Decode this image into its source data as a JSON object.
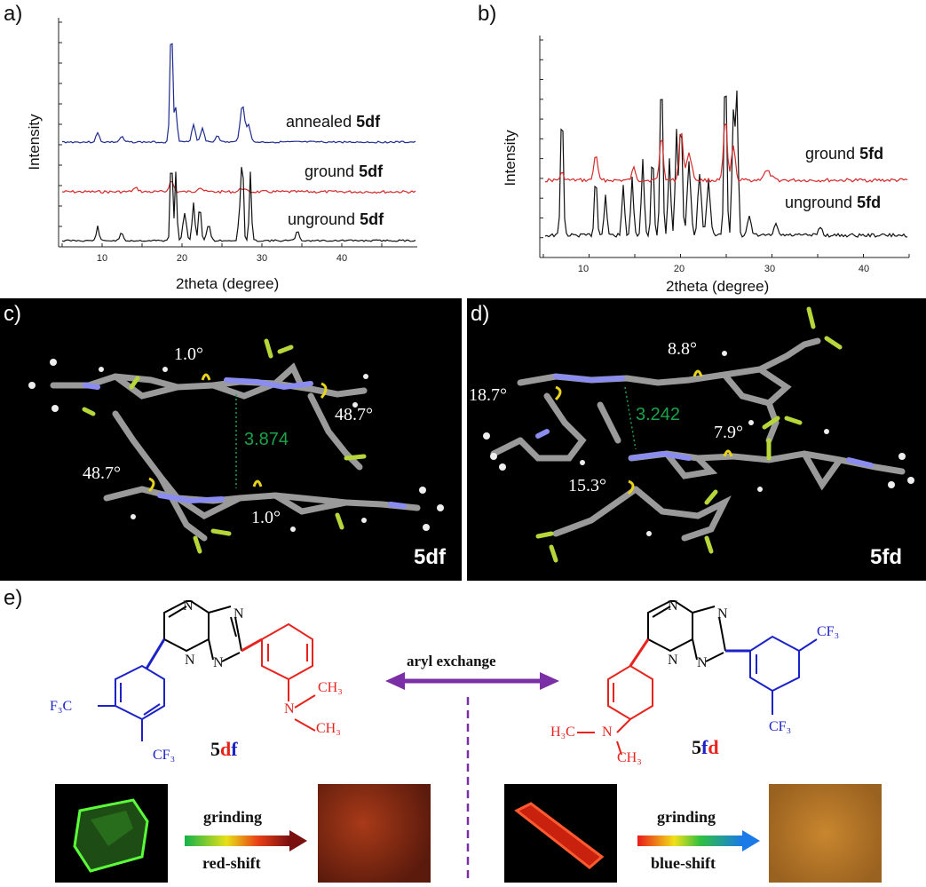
{
  "panel_a": {
    "label": "a)",
    "ylabel": "Intensity",
    "xlabel": "2theta (degree)",
    "xticks": [
      "10",
      "20",
      "30",
      "40"
    ],
    "traces": [
      {
        "prefix": "annealed ",
        "compound": "5df",
        "color": "#1f2c8f"
      },
      {
        "prefix": "ground ",
        "compound": "5df",
        "color": "#d42a2a"
      },
      {
        "prefix": "unground ",
        "compound": "5df",
        "color": "#111111"
      }
    ]
  },
  "panel_b": {
    "label": "b)",
    "ylabel": "Intensity",
    "xlabel": "2theta (degree)",
    "xticks": [
      "10",
      "20",
      "30",
      "40"
    ],
    "traces": [
      {
        "prefix": "ground ",
        "compound": "5fd",
        "color": "#d42a2a"
      },
      {
        "prefix": "unground ",
        "compound": "5fd",
        "color": "#111111"
      }
    ]
  },
  "panel_c": {
    "label": "c)",
    "compound": "5df",
    "angles": [
      "1.0°",
      "48.7°",
      "48.7°",
      "1.0°"
    ],
    "distance": "3.874"
  },
  "panel_d": {
    "label": "d)",
    "compound": "5fd",
    "angles": [
      "8.8°",
      "18.7°",
      "7.9°",
      "15.3°"
    ],
    "distance": "3.242"
  },
  "panel_e": {
    "label": "e)",
    "left": {
      "n_label": "N",
      "n1": "N",
      "n2": "N",
      "n3": "N",
      "cf3_left": "F₃C",
      "cf3_bottom": "CF₃",
      "ch3_top": "CH₃",
      "ch3_bottom": "CH₃",
      "amine_n": "N",
      "name_prefix": "5",
      "name_d": "d",
      "name_f": "f"
    },
    "right": {
      "n_label": "N",
      "n1": "N",
      "n2": "N",
      "n3": "N",
      "cf3_top": "CF₃",
      "cf3_bottom": "CF₃",
      "h3c": "H₃C",
      "ch3_bottom": "CH₃",
      "amine_n": "N",
      "name_prefix": "5",
      "name_f": "f",
      "name_d": "d"
    },
    "center_label": "aryl exchange",
    "left_arrow": {
      "top": "grinding",
      "bottom": "red-shift"
    },
    "right_arrow": {
      "top": "grinding",
      "bottom": "blue-shift"
    }
  },
  "colors": {
    "blue_trace": "#1f2c8f",
    "red_trace": "#d42a2a",
    "green_measure": "#1aa34a",
    "purple_arrow": "#7b2fa6",
    "chem_red": "#e8231e",
    "chem_blue": "#1b22c8"
  }
}
